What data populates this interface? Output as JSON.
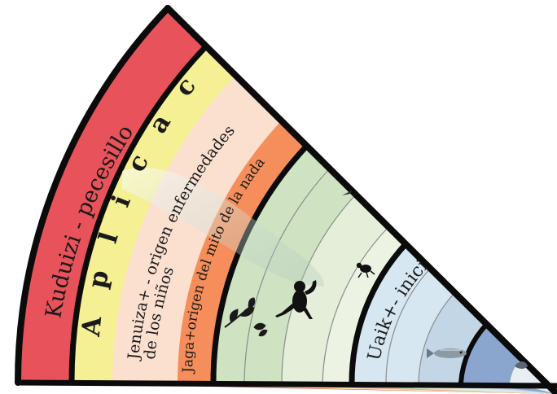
{
  "diagram": {
    "outer_band_label": "Kuduizi - pecesillo",
    "aplicacion_letters": "A p l i c a c i ó",
    "jenuiza_line1": "Jenuiza+ - origen enfermedades",
    "jenuiza_line2": "de los niños",
    "jaga_label": "Jaga+origen del mito de la nada",
    "uaik_label": "Uaik+- inici",
    "colors": {
      "red_band": "#e8535b",
      "yellow_band": "#f5f093",
      "peach_band": "#fbe0cf",
      "orange_band": "#f58e5a",
      "green_band": "#cfe3c3",
      "light_green_band": "#e4eed8",
      "blue_band": "#d6e7f1",
      "deep_blue_band": "#8aa6cf",
      "border": "#0b0b0b"
    },
    "icons": [
      "plant-icon",
      "monkey-icon",
      "insect-icon",
      "fish-icon",
      "bird-icon"
    ]
  }
}
